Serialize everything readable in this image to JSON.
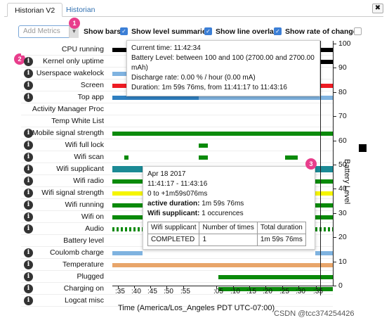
{
  "tabs": [
    {
      "label": "Historian V2"
    },
    {
      "label": "Historian"
    }
  ],
  "close_label": "✖",
  "toolbar": {
    "metrics_placeholder": "Add Metrics",
    "show_bars": "Show bars",
    "show_level_summaries": "Show level summaries",
    "show_line_overlay": "Show line overlay",
    "show_rate_of_change": "Show rate of change"
  },
  "badges": [
    "1",
    "2",
    "3"
  ],
  "rows": [
    {
      "label": "CPU running"
    },
    {
      "label": "Kernel only uptime"
    },
    {
      "label": "Userspace wakelock"
    },
    {
      "label": "Screen"
    },
    {
      "label": "Top app"
    },
    {
      "label": "Activity Manager Proc"
    },
    {
      "label": "Temp White List"
    },
    {
      "label": "Mobile signal strength"
    },
    {
      "label": "Wifi full lock"
    },
    {
      "label": "Wifi scan"
    },
    {
      "label": "Wifi supplicant"
    },
    {
      "label": "Wifi radio"
    },
    {
      "label": "Wifi signal strength"
    },
    {
      "label": "Wifi running"
    },
    {
      "label": "Wifi on"
    },
    {
      "label": "Audio"
    },
    {
      "label": "Battery level"
    },
    {
      "label": "Coulomb charge"
    },
    {
      "label": "Temperature"
    },
    {
      "label": "Plugged"
    },
    {
      "label": "Charging on"
    },
    {
      "label": "Logcat misc"
    }
  ],
  "y_axis": {
    "ticks": [
      "100",
      "90",
      "80",
      "70",
      "60",
      "50",
      "40",
      "30",
      "20",
      "10",
      "0"
    ],
    "title": "Battery Level"
  },
  "x_axis": {
    "ticks": [
      ":35",
      ":40",
      ":45",
      ":50",
      ":55",
      ":05",
      ":10",
      ":15",
      ":20",
      ":25",
      ":30",
      ":35"
    ],
    "title": "Time (America/Los_Angeles PDT UTC-07:00)"
  },
  "tooltip1": {
    "current_time": "Current time: 11:42:34",
    "battery": "Battery Level: between 100 and 100 (2700.00 and 2700.00 mAh)",
    "discharge": "Discharge rate: 0.00 % / hour (0.00 mA)",
    "duration": "Duration: 1m 59s 76ms, from 11:41:17 to 11:43:16"
  },
  "tooltip2": {
    "date": "Apr 18 2017",
    "range": "11:41:17 - 11:43:16",
    "offset": "0 to +1m59s076ms",
    "active_label": "active duration:",
    "active_value": " 1m 59s 76ms",
    "sup_label": "Wifi supplicant:",
    "sup_value": " 1 occurences",
    "table_headers": [
      "Wifi supplicant",
      "Number of times",
      "Total duration"
    ],
    "table_row": [
      "COMPLETED",
      "1",
      "1m 59s 76ms"
    ]
  },
  "watermark": "CSDN @tcc374254426",
  "colors": {
    "red": "#ee1c24",
    "blue": "#2f7fc0",
    "lightblue": "#7fb3e0",
    "green": "#0a8a0a",
    "teal": "#1b8a95",
    "yellow": "#f5f500",
    "orange": "#e8a56a",
    "black": "#000000"
  }
}
